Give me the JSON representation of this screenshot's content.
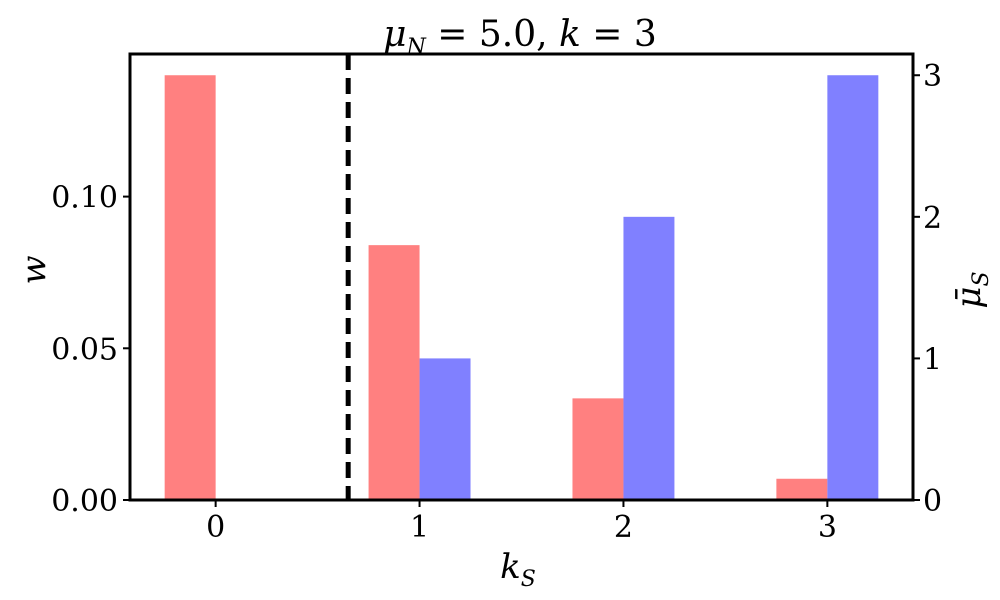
{
  "chart_data": {
    "type": "bar",
    "title": "μ_N = 5.0, k = 3",
    "xlabel": "k_S",
    "ylabel": "w",
    "y2label": "μ̄_S",
    "categories": [
      "0",
      "1",
      "2",
      "3"
    ],
    "series": [
      {
        "axis": "left",
        "color": "#ff8080",
        "values": [
          0.14,
          0.084,
          0.0335,
          0.007
        ]
      },
      {
        "axis": "right",
        "color": "#8080ff",
        "values": [
          0,
          1,
          2,
          3
        ]
      }
    ],
    "ylim": [
      0,
      0.147
    ],
    "yticks": [
      "0.00",
      "0.05",
      "0.10"
    ],
    "yticks_values": [
      0,
      0.05,
      0.1
    ],
    "y2lim": [
      0,
      3.15
    ],
    "y2ticks": [
      "0",
      "1",
      "2",
      "3"
    ],
    "y2ticks_values": [
      0,
      1,
      2,
      3
    ],
    "xlim": [
      -0.42,
      3.42
    ],
    "vline": {
      "x": 0.65,
      "style": "dashed",
      "color": "#000000"
    },
    "grid": false
  }
}
